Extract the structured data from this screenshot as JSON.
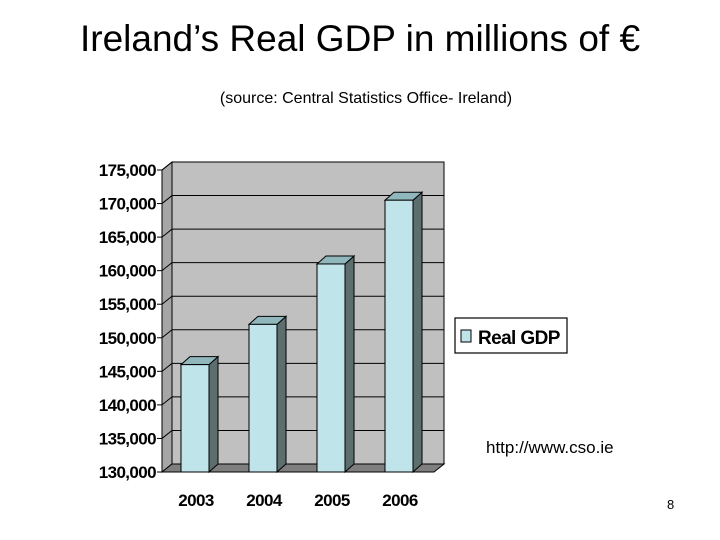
{
  "slide": {
    "title": "Ireland’s Real GDP in millions of €",
    "subtitle": "(source: Central Statistics Office- Ireland)",
    "url": "http://www.cso.ie",
    "slide_number": "8"
  },
  "chart_data": {
    "type": "bar",
    "title": "",
    "xlabel": "",
    "ylabel": "",
    "categories": [
      "2003",
      "2004",
      "2005",
      "2006"
    ],
    "series": [
      {
        "name": "Real GDP",
        "values": [
          146000,
          152000,
          161000,
          170500
        ]
      }
    ],
    "ylim": [
      130000,
      175000
    ],
    "yticks": [
      "130,000",
      "135,000",
      "140,000",
      "145,000",
      "150,000",
      "155,000",
      "160,000",
      "165,000",
      "170,000",
      "175,000"
    ],
    "grid": true,
    "legend": "right",
    "colors": {
      "bar_front": "#bfe4ea",
      "bar_side": "#5c6e6e",
      "bar_top": "#90b8bc",
      "wall": "#c0c0c0",
      "floor": "#7f7f7f"
    }
  }
}
